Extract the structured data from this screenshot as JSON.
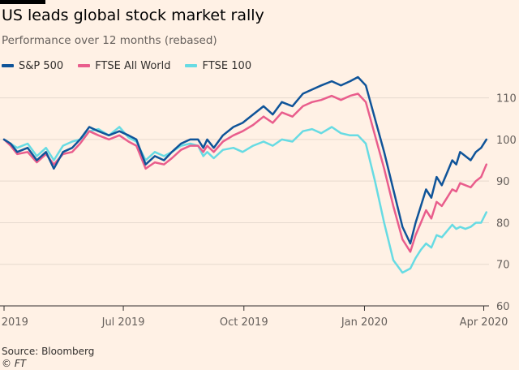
{
  "header": {
    "title": "US leads global stock market rally",
    "subtitle": "Performance over 12 months (rebased)"
  },
  "footer": {
    "source": "Source: Bloomberg",
    "credit": "© FT"
  },
  "colors": {
    "background": "#fff1e5",
    "sp500": "#0f5499",
    "ftse_all_world": "#e95d8c",
    "ftse_100": "#67dbe3",
    "grid": "#e6d9ce",
    "axis_text": "#66605c"
  },
  "chart_data": {
    "type": "line",
    "title": "US leads global stock market rally",
    "subtitle": "Performance over 12 months (rebased)",
    "xlabel": "",
    "ylabel": "",
    "ylim": [
      60,
      115
    ],
    "yticks": [
      60,
      70,
      80,
      90,
      100,
      110
    ],
    "xlim": [
      0,
      370
    ],
    "xtick_positions": [
      0,
      91,
      183,
      275,
      366
    ],
    "xtick_labels": [
      "Apr 2019",
      "Jul 2019",
      "Oct 2019",
      "Jan 2020",
      "Apr 2020"
    ],
    "grid": true,
    "legend_position": "top-left",
    "x_unit": "days since 1 Apr 2019",
    "series": [
      {
        "name": "S&P 500",
        "color": "#0f5499",
        "x": [
          0,
          5,
          10,
          18,
          25,
          32,
          38,
          45,
          52,
          58,
          65,
          72,
          80,
          88,
          95,
          101,
          108,
          115,
          122,
          128,
          135,
          142,
          148,
          152,
          155,
          160,
          167,
          175,
          182,
          190,
          198,
          205,
          212,
          220,
          228,
          235,
          242,
          250,
          257,
          264,
          270,
          276,
          283,
          290,
          297,
          304,
          310,
          314,
          318,
          322,
          326,
          330,
          334,
          338,
          342,
          345,
          348,
          352,
          356,
          360,
          364,
          368
        ],
        "values": [
          100,
          99,
          97,
          98,
          95,
          97,
          93,
          97,
          98,
          100,
          103,
          102,
          101,
          102,
          101,
          100,
          94,
          96,
          95,
          97,
          99,
          100,
          100,
          98,
          100,
          98,
          101,
          103,
          104,
          106,
          108,
          106,
          109,
          108,
          111,
          112,
          113,
          114,
          113,
          114,
          115,
          113,
          105,
          97,
          88,
          79,
          75,
          80,
          84,
          88,
          86,
          91,
          89,
          92,
          95,
          94,
          97,
          96,
          95,
          97,
          98,
          100
        ]
      },
      {
        "name": "FTSE All World",
        "color": "#e95d8c",
        "x": [
          0,
          5,
          10,
          18,
          25,
          32,
          38,
          45,
          52,
          58,
          65,
          72,
          80,
          88,
          95,
          101,
          108,
          115,
          122,
          128,
          135,
          142,
          148,
          152,
          155,
          160,
          167,
          175,
          182,
          190,
          198,
          205,
          212,
          220,
          228,
          235,
          242,
          250,
          257,
          264,
          270,
          276,
          283,
          290,
          297,
          304,
          310,
          314,
          318,
          322,
          326,
          330,
          334,
          338,
          342,
          345,
          348,
          352,
          356,
          360,
          364,
          368
        ],
        "values": [
          100,
          98.5,
          96.5,
          97,
          94.5,
          96.5,
          94,
          96.5,
          97,
          99,
          102,
          101,
          100,
          101,
          99.5,
          98.5,
          93,
          94.5,
          94,
          95.5,
          97.5,
          98.5,
          98.5,
          97,
          98.5,
          97,
          99.5,
          101,
          102,
          103.5,
          105.5,
          104,
          106.5,
          105.5,
          108,
          109,
          109.5,
          110.5,
          109.5,
          110.5,
          111,
          109,
          101,
          93,
          84,
          76,
          73,
          77,
          80,
          83,
          81,
          85,
          84,
          86,
          88,
          87.5,
          89.5,
          89,
          88.5,
          90,
          91,
          94
        ]
      },
      {
        "name": "FTSE 100",
        "color": "#67dbe3",
        "x": [
          0,
          5,
          10,
          18,
          25,
          32,
          38,
          45,
          52,
          58,
          65,
          72,
          80,
          88,
          95,
          101,
          108,
          115,
          122,
          128,
          135,
          142,
          148,
          152,
          155,
          160,
          167,
          175,
          182,
          190,
          198,
          205,
          212,
          220,
          228,
          235,
          242,
          250,
          257,
          264,
          270,
          276,
          283,
          290,
          297,
          304,
          310,
          314,
          318,
          322,
          326,
          330,
          334,
          338,
          342,
          345,
          348,
          352,
          356,
          360,
          364,
          368
        ],
        "values": [
          100,
          99,
          98,
          99,
          96,
          98,
          95,
          98.5,
          99.5,
          100,
          102,
          102.5,
          101,
          103,
          100.5,
          99.5,
          95,
          97,
          96,
          97,
          98.5,
          99,
          98.5,
          96,
          97,
          95.5,
          97.5,
          98,
          97,
          98.5,
          99.5,
          98.5,
          100,
          99.5,
          102,
          102.5,
          101.5,
          103,
          101.5,
          101,
          101,
          99,
          90,
          80,
          71,
          68,
          69,
          71.5,
          73.5,
          75,
          74,
          77,
          76.5,
          78,
          79.5,
          78.5,
          79,
          78.5,
          79,
          80,
          80,
          82.5
        ]
      }
    ]
  }
}
